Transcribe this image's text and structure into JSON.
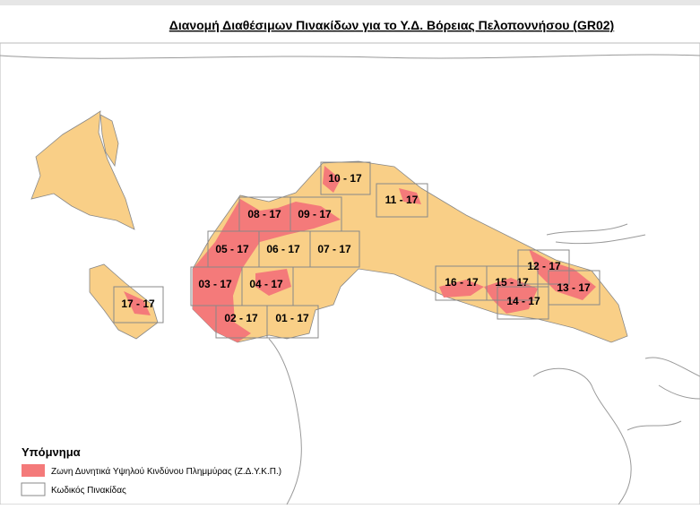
{
  "title": "Διανομή Διαθέσιμων Πινακίδων για το Υ.Δ. Βόρειας Πελοποννήσου (GR02)",
  "tiles": [
    "10 - 17",
    "11 - 17",
    "08 - 17",
    "09 - 17",
    "05 - 17",
    "06 - 17",
    "07 - 17",
    "03 - 17",
    "04 - 17",
    "02 - 17",
    "01 - 17",
    "17 - 17",
    "16 - 17",
    "15 - 17",
    "14 - 17",
    "12 - 17",
    "13 - 17"
  ],
  "legend": {
    "title": "Υπόμνημα",
    "items": [
      "Ζωνη Δυνητικά Υψηλού Κινδύνου Πλημμύρας (Ζ.Δ.Υ.Κ.Π.)",
      "Κωδικός Πινακίδας"
    ]
  }
}
